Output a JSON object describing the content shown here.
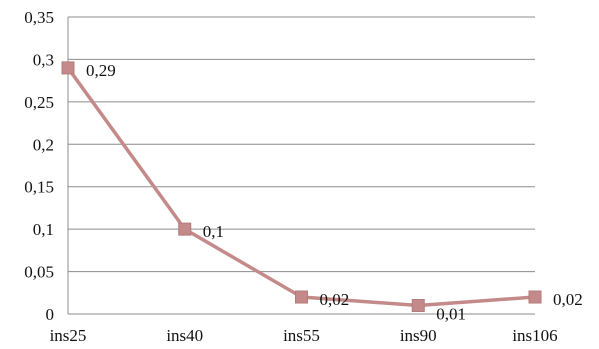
{
  "chart_data": {
    "type": "line",
    "title": "",
    "xlabel": "",
    "ylabel": "",
    "categories": [
      "ins25",
      "ins40",
      "ins55",
      "ins90",
      "ins106"
    ],
    "series": [
      {
        "values": [
          0.29,
          0.1,
          0.02,
          0.01,
          0.02
        ],
        "color": "#c48a8a",
        "marker": "square"
      }
    ],
    "data_labels": [
      "0,29",
      "0,1",
      "0,02",
      "0,01",
      "0,02"
    ],
    "ylim": [
      0,
      0.35
    ],
    "y_ticks": [
      0,
      0.05,
      0.1,
      0.15,
      0.2,
      0.25,
      0.3,
      0.35
    ],
    "y_tick_labels": [
      "0",
      "0,05",
      "0,1",
      "0,15",
      "0,2",
      "0,25",
      "0,3",
      "0,35"
    ],
    "grid": "horizontal",
    "legend": "none"
  }
}
